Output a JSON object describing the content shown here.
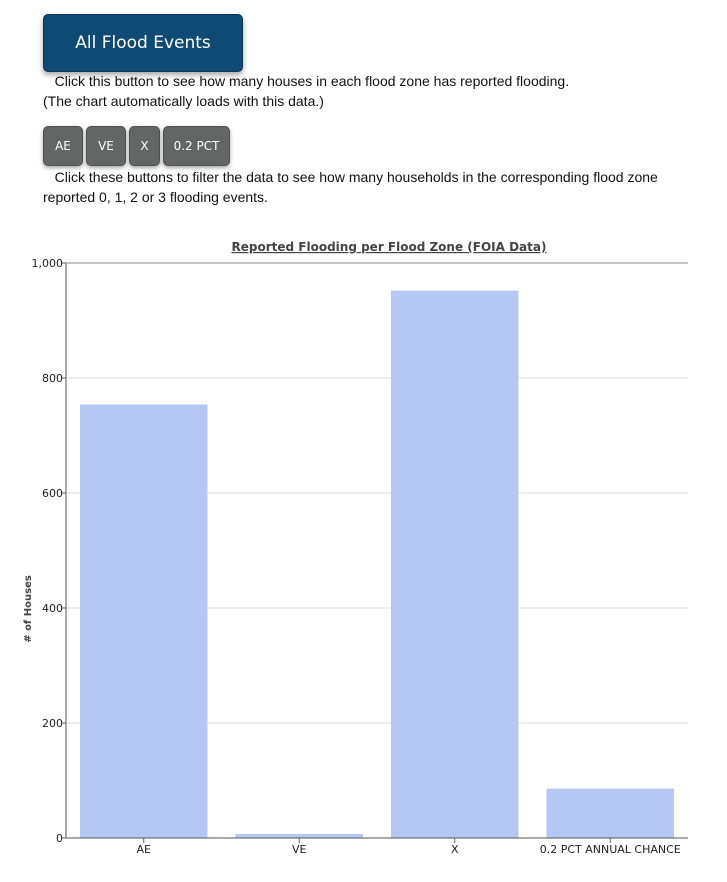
{
  "header": {
    "all_events_button": "All Flood Events"
  },
  "intro": {
    "line1": "Click this button to see how many houses in each flood zone has reported flooding.",
    "line2": "(The chart automatically loads with this data.)"
  },
  "filters": {
    "buttons": [
      "AE",
      "VE",
      "X",
      "0.2 PCT"
    ],
    "description_line1": "Click these buttons to filter the data to see how many households in the corresponding flood zone",
    "description_line2": "reported 0, 1, 2 or 3 flooding events."
  },
  "chart_data": {
    "type": "bar",
    "title": "Reported Flooding per Flood Zone (FOIA Data)",
    "xlabel": "",
    "ylabel": "# of Houses",
    "categories": [
      "AE",
      "VE",
      "X",
      "0.2 PCT ANNUAL CHANCE"
    ],
    "values": [
      754,
      7,
      952,
      86
    ],
    "ylim": [
      0,
      1000
    ],
    "yticks": [
      0,
      200,
      400,
      600,
      800,
      1000
    ],
    "ytick_labels": [
      "0",
      "200",
      "400",
      "600",
      "800",
      "1,000"
    ],
    "grid": true,
    "legend": "none",
    "bar_color": "#b5c7f5"
  }
}
